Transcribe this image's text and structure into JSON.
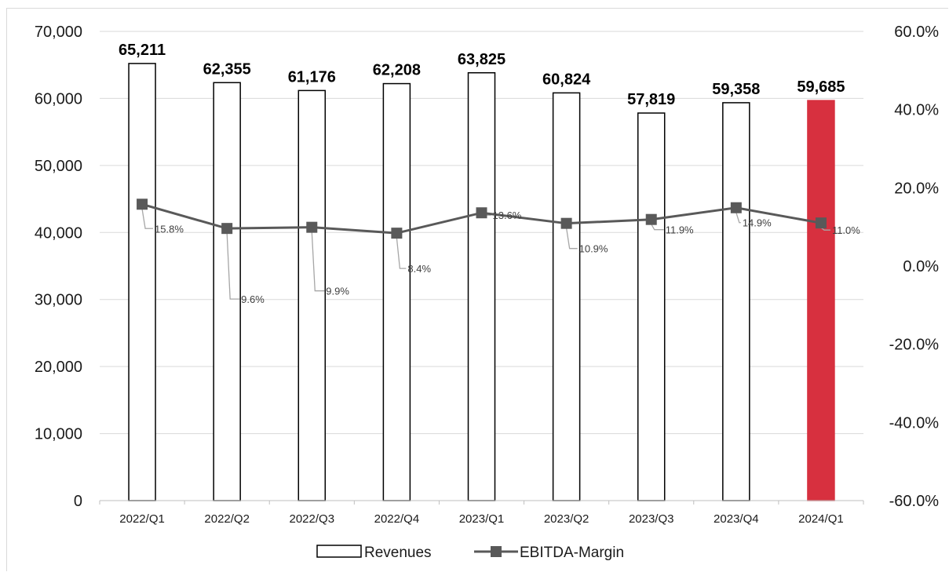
{
  "chart_data": {
    "type": "bar+line",
    "categories": [
      "2022/Q1",
      "2022/Q2",
      "2022/Q3",
      "2022/Q4",
      "2023/Q1",
      "2023/Q2",
      "2023/Q3",
      "2023/Q4",
      "2024/Q1"
    ],
    "series": [
      {
        "name": "Revenues",
        "type": "bar",
        "axis": "left",
        "values": [
          65211,
          62355,
          61176,
          62208,
          63825,
          60824,
          57819,
          59358,
          59685
        ],
        "value_labels": [
          "65,211",
          "62,355",
          "61,176",
          "62,208",
          "63,825",
          "60,824",
          "57,819",
          "59,358",
          "59,685"
        ],
        "fill": "#ffffff",
        "highlight_index": 8,
        "highlight_fill": "#d7303f"
      },
      {
        "name": "EBITDA-Margin",
        "type": "line",
        "axis": "right",
        "values": [
          15.8,
          9.6,
          9.9,
          8.4,
          13.6,
          10.9,
          11.9,
          14.9,
          11.0
        ],
        "value_labels": [
          "15.8%",
          "9.6%",
          "9.9%",
          "8.4%",
          "13.6%",
          "10.9%",
          "11.9%",
          "14.9%",
          "11.0%"
        ],
        "color": "#595959"
      }
    ],
    "y_left": {
      "min": 0,
      "max": 70000,
      "ticks": [
        "0",
        "10,000",
        "20,000",
        "30,000",
        "40,000",
        "50,000",
        "60,000",
        "70,000"
      ]
    },
    "y_right": {
      "min": -60,
      "max": 60,
      "ticks": [
        "-60.0%",
        "-40.0%",
        "-20.0%",
        "0.0%",
        "20.0%",
        "40.0%",
        "60.0%"
      ]
    },
    "grid": true,
    "legend": {
      "position": "bottom",
      "entries": [
        "Revenues",
        "EBITDA-Margin"
      ]
    }
  }
}
